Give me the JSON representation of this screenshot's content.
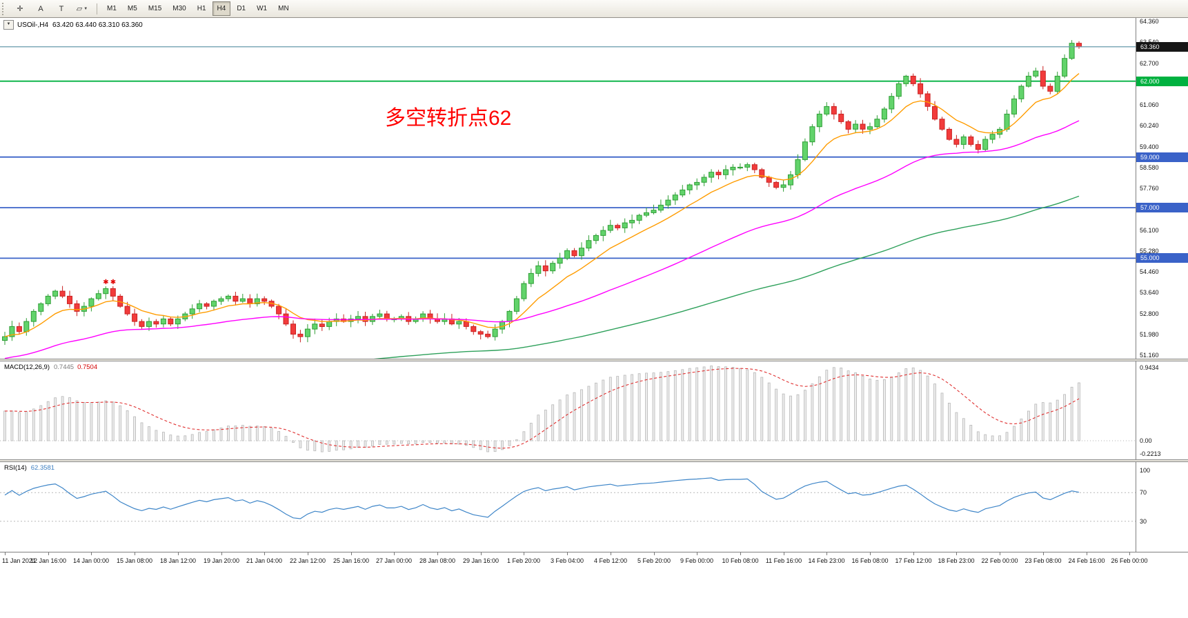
{
  "toolbar": {
    "tools": [
      {
        "name": "crosshair-tool",
        "glyph": "✛"
      },
      {
        "name": "text-label-tool",
        "glyph": "A"
      },
      {
        "name": "text-tool",
        "glyph": "T"
      },
      {
        "name": "shapes-tool",
        "glyph": "▱",
        "has_dropdown": true
      }
    ],
    "timeframes": [
      "M1",
      "M5",
      "M15",
      "M30",
      "H1",
      "H4",
      "D1",
      "W1",
      "MN"
    ],
    "active_timeframe": "H4"
  },
  "chart": {
    "symbol_label": "USOil-,H4",
    "ohlc": "63.420 63.440 63.310 63.360",
    "annotation": "多空转折点62"
  },
  "indicators": {
    "macd": {
      "name": "MACD(12,26,9)",
      "value_main": "0.7445",
      "value_signal": "0.7504"
    },
    "rsi": {
      "name": "RSI(14)",
      "value": "62.3581"
    }
  },
  "chart_data": {
    "type": "candlestick",
    "symbol": "USOil",
    "timeframe": "H4",
    "last_ohlc": {
      "open": 63.42,
      "high": 63.44,
      "low": 63.31,
      "close": 63.36
    },
    "price_axis": {
      "labels": [
        "64.360",
        "63.540",
        "62.700",
        "61.060",
        "60.240",
        "59.400",
        "58.580",
        "57.760",
        "56.100",
        "55.280",
        "54.460",
        "53.640",
        "52.800",
        "51.980",
        "51.160"
      ],
      "min": 51.16,
      "max": 64.36
    },
    "levels": [
      {
        "name": "current-price-level",
        "price": 63.36,
        "label": "63.360",
        "line_color": "#6f9fb0",
        "badge_bg": "#161616",
        "line_width": 1.2
      },
      {
        "name": "green-level-62",
        "price": 62.0,
        "label": "62.000",
        "line_color": "#00b140",
        "badge_bg": "#00b140",
        "line_width": 1.8
      },
      {
        "name": "blue-level-59",
        "price": 59.0,
        "label": "59.000",
        "line_color": "#3a62c8",
        "badge_bg": "#3a62c8",
        "line_width": 1.8
      },
      {
        "name": "blue-level-57",
        "price": 57.0,
        "label": "57.000",
        "line_color": "#3a62c8",
        "badge_bg": "#3a62c8",
        "line_width": 1.8
      },
      {
        "name": "blue-level-55",
        "price": 55.0,
        "label": "55.000",
        "line_color": "#3a62c8",
        "badge_bg": "#3a62c8",
        "line_width": 1.8
      }
    ],
    "candles": {
      "first_open": 51.75,
      "up_fill": "#62d36b",
      "up_color": "#2f9e36",
      "down_fill": "#f23b3b",
      "down_color": "#c92222",
      "closes": [
        51.9,
        52.3,
        52.1,
        52.5,
        52.9,
        53.2,
        53.5,
        53.7,
        53.5,
        53.2,
        52.9,
        53.1,
        53.4,
        53.6,
        53.8,
        53.5,
        53.1,
        52.8,
        52.5,
        52.3,
        52.5,
        52.4,
        52.6,
        52.4,
        52.6,
        52.8,
        53.0,
        53.2,
        53.1,
        53.3,
        53.4,
        53.5,
        53.3,
        53.4,
        53.2,
        53.4,
        53.3,
        53.1,
        52.8,
        52.4,
        52.0,
        51.9,
        52.2,
        52.4,
        52.3,
        52.5,
        52.6,
        52.5,
        52.6,
        52.7,
        52.5,
        52.7,
        52.8,
        52.6,
        52.6,
        52.7,
        52.5,
        52.6,
        52.8,
        52.6,
        52.5,
        52.6,
        52.4,
        52.5,
        52.3,
        52.1,
        52.0,
        51.9,
        52.2,
        52.5,
        52.9,
        53.4,
        54.0,
        54.4,
        54.7,
        54.5,
        54.8,
        55.0,
        55.3,
        55.1,
        55.4,
        55.7,
        55.9,
        56.1,
        56.3,
        56.2,
        56.4,
        56.5,
        56.7,
        56.8,
        56.9,
        57.1,
        57.3,
        57.5,
        57.7,
        57.9,
        58.0,
        58.2,
        58.4,
        58.3,
        58.5,
        58.6,
        58.6,
        58.7,
        58.5,
        58.2,
        58.0,
        57.8,
        57.9,
        58.3,
        58.9,
        59.6,
        60.2,
        60.7,
        61.0,
        60.7,
        60.4,
        60.1,
        60.3,
        60.1,
        60.2,
        60.5,
        60.9,
        61.4,
        61.9,
        62.2,
        61.9,
        61.5,
        61.0,
        60.5,
        60.1,
        59.7,
        59.5,
        59.8,
        59.5,
        59.3,
        59.7,
        59.9,
        60.1,
        60.7,
        61.3,
        61.8,
        62.2,
        62.4,
        61.8,
        61.6,
        62.2,
        62.9,
        63.5,
        63.36
      ]
    },
    "overlays": [
      {
        "name": "ma-fast-line",
        "period": 10,
        "color": "#ff9c00"
      },
      {
        "name": "ma-mid-line",
        "period": 45,
        "color": "#ff00ff"
      },
      {
        "name": "ma-slow-line",
        "period": 120,
        "color": "#2da05a"
      }
    ],
    "markers": [
      {
        "bar": 14,
        "glyph": "✱",
        "color": "#e00000"
      },
      {
        "bar": 15,
        "glyph": "✱",
        "color": "#e00000"
      }
    ],
    "macd": {
      "period_fast": 12,
      "period_slow": 26,
      "period_signal": 9,
      "axis_labels": [
        "0.9434",
        "0.00",
        "-0.2213"
      ],
      "histogram_color": "#b8b8b8",
      "signal_color": "#e03030"
    },
    "rsi": {
      "period": 14,
      "levels": [
        70,
        30
      ],
      "axis_labels": [
        "100",
        "70",
        "30"
      ],
      "line_color": "#3d85c8"
    },
    "time_axis": [
      "11 Jan 2021",
      "12 Jan 16:00",
      "14 Jan 00:00",
      "15 Jan 08:00",
      "18 Jan 12:00",
      "19 Jan 20:00",
      "21 Jan 04:00",
      "22 Jan 12:00",
      "25 Jan 16:00",
      "27 Jan 00:00",
      "28 Jan 08:00",
      "29 Jan 16:00",
      "1 Feb 20:00",
      "3 Feb 04:00",
      "4 Feb 12:00",
      "5 Feb 20:00",
      "9 Feb 00:00",
      "10 Feb 08:00",
      "11 Feb 16:00",
      "14 Feb 23:00",
      "16 Feb 08:00",
      "17 Feb 12:00",
      "18 Feb 23:00",
      "22 Feb 00:00",
      "23 Feb 08:00",
      "24 Feb 16:00",
      "26 Feb 00:00"
    ]
  }
}
